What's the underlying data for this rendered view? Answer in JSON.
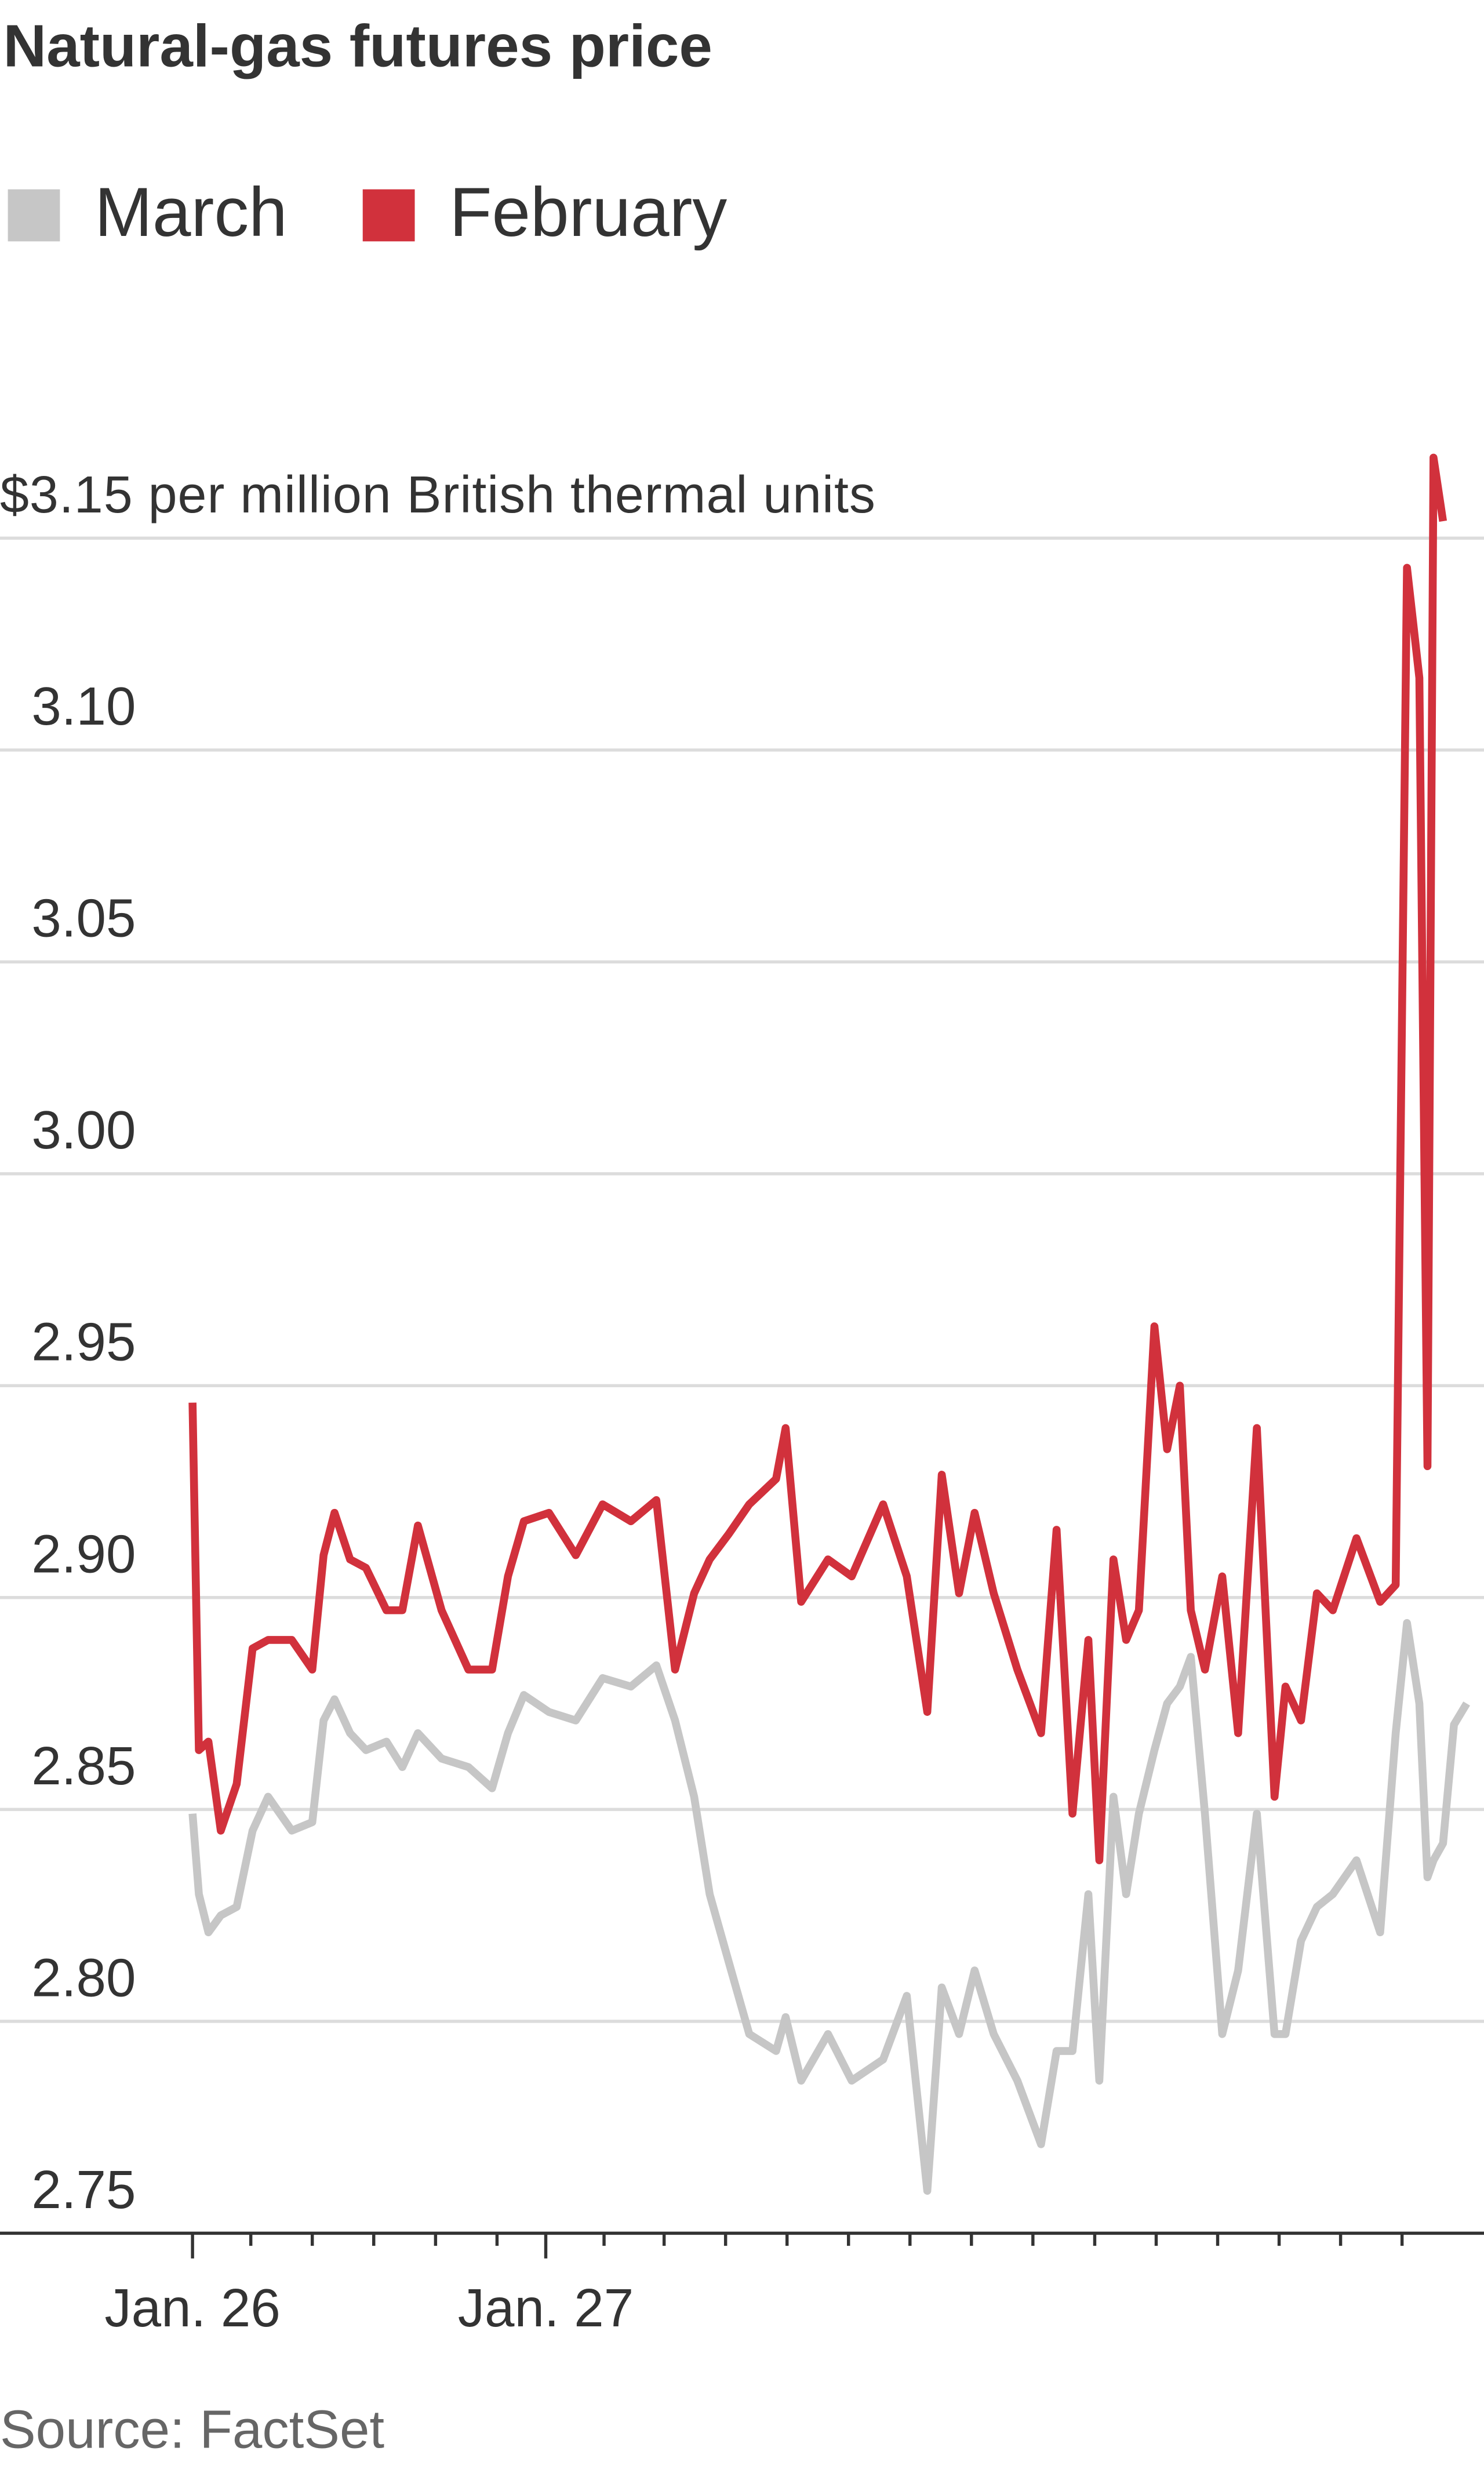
{
  "chart_data": {
    "type": "line",
    "title": "Natural-gas futures price",
    "source": "Source: FactSet",
    "x": [
      0,
      0.018,
      0.045,
      0.08,
      0.125,
      0.17,
      0.214,
      0.281,
      0.339,
      0.371,
      0.402,
      0.446,
      0.491,
      0.549,
      0.594,
      0.638,
      0.705,
      0.781,
      0.848,
      0.893,
      0.938,
      1.009,
      1.085,
      1.161,
      1.241,
      1.313,
      1.366,
      1.42,
      1.464,
      1.518,
      1.576,
      1.652,
      1.679,
      1.723,
      1.799,
      1.866,
      1.955,
      2.022,
      2.08,
      2.121,
      2.17,
      2.214,
      2.268,
      2.335,
      2.402,
      2.446,
      2.491,
      2.536,
      2.567,
      2.607,
      2.643,
      2.679,
      2.723,
      2.759,
      2.795,
      2.826,
      2.866,
      2.915,
      2.96,
      3.013,
      3.063,
      3.094,
      3.138,
      3.183,
      3.228,
      3.295,
      3.362,
      3.406,
      3.438,
      3.473,
      3.496,
      3.513,
      3.54,
      3.571,
      3.607
    ],
    "series": [
      {
        "name": "March",
        "color": "#c6c6c6",
        "values": [
          2.849,
          2.83,
          2.821,
          2.825,
          2.827,
          2.845,
          2.853,
          2.845,
          2.847,
          2.871,
          2.876,
          2.868,
          2.864,
          2.866,
          2.86,
          2.868,
          2.862,
          2.86,
          2.855,
          2.868,
          2.877,
          2.873,
          2.871,
          2.881,
          2.879,
          2.884,
          2.871,
          2.853,
          2.83,
          2.814,
          2.797,
          2.793,
          2.801,
          2.786,
          2.797,
          2.786,
          2.791,
          2.806,
          2.76,
          2.808,
          2.797,
          2.812,
          2.797,
          2.786,
          2.771,
          2.793,
          2.793,
          2.83,
          2.786,
          2.853,
          2.83,
          2.849,
          2.864,
          2.875,
          2.879,
          2.886,
          2.849,
          2.797,
          2.812,
          2.849,
          2.797,
          2.797,
          2.819,
          2.827,
          2.83,
          2.838,
          2.821,
          2.868,
          2.894,
          2.875,
          2.834,
          2.838,
          2.842,
          2.87,
          2.875
        ]
      },
      {
        "name": "February",
        "color": "#d1313c",
        "values": [
          2.946,
          2.864,
          2.866,
          2.845,
          2.856,
          2.888,
          2.89,
          2.89,
          2.883,
          2.91,
          2.92,
          2.909,
          2.907,
          2.897,
          2.897,
          2.917,
          2.897,
          2.883,
          2.883,
          2.905,
          2.918,
          2.92,
          2.91,
          2.922,
          2.918,
          2.923,
          2.883,
          2.901,
          2.909,
          2.915,
          2.922,
          2.928,
          2.94,
          2.899,
          2.909,
          2.905,
          2.922,
          2.905,
          2.873,
          2.929,
          2.901,
          2.92,
          2.901,
          2.883,
          2.868,
          2.916,
          2.849,
          2.89,
          2.838,
          2.909,
          2.89,
          2.897,
          2.964,
          2.935,
          2.95,
          2.897,
          2.883,
          2.905,
          2.868,
          2.94,
          2.853,
          2.879,
          2.871,
          2.901,
          2.897,
          2.914,
          2.899,
          2.903,
          3.143,
          3.117,
          2.931,
          3.169,
          3.154,
          null,
          null
        ]
      }
    ],
    "xlim": [
      -0.545,
      3.656
    ],
    "xticks": [
      {
        "value": 0,
        "label": "Jan. 26"
      },
      {
        "value": 1,
        "label": "Jan. 27"
      }
    ],
    "minor_xticks": [
      0.165,
      0.339,
      0.513,
      0.688,
      0.862,
      1.165,
      1.335,
      1.509,
      1.683,
      1.857,
      2.031,
      2.205,
      2.379,
      2.554,
      2.728,
      2.902,
      3.076,
      3.25,
      3.424
    ],
    "ylim": [
      2.75,
      3.175
    ],
    "yticks": [
      2.75,
      {
        "value": 2.8,
        "label": "2.80"
      },
      2.85,
      {
        "value": 2.9,
        "label": "2.90"
      },
      2.95,
      {
        "value": 3.0,
        "label": "3.00"
      },
      3.05,
      {
        "value": 3.1,
        "label": "3.10"
      },
      {
        "value": 3.15,
        "label": "$3.15 per million British thermal units"
      }
    ],
    "grid": true
  }
}
